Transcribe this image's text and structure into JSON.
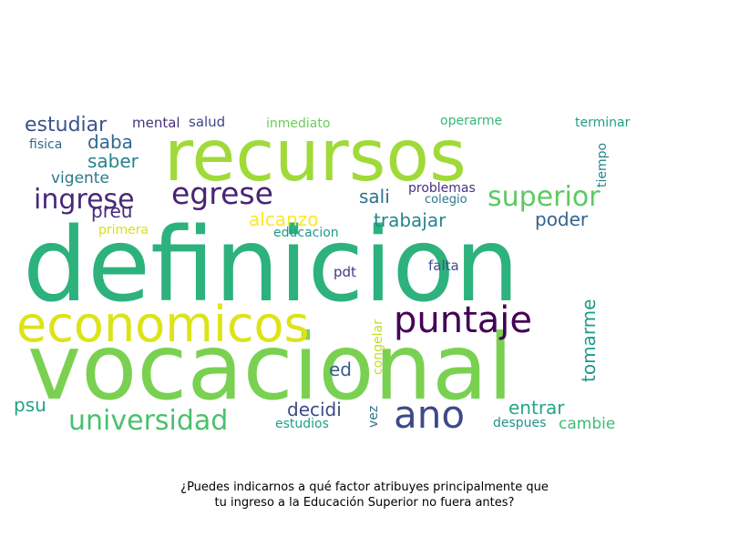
{
  "caption": {
    "line1": "¿Puedes indicarnos a qué factor atribuyes principalmente que",
    "line2": "tu ingreso a la Educación Superior no fuera antes?"
  },
  "word_cloud": {
    "words": [
      {
        "text": "definicion",
        "color": "#2db27d"
      },
      {
        "text": "vocacional",
        "color": "#7ad151"
      },
      {
        "text": "recursos",
        "color": "#a0da39"
      },
      {
        "text": "economicos",
        "color": "#dde318"
      },
      {
        "text": "puntaje",
        "color": "#440154"
      },
      {
        "text": "egrese",
        "color": "#482374"
      },
      {
        "text": "ingrese",
        "color": "#482878"
      },
      {
        "text": "superior",
        "color": "#5ec962"
      },
      {
        "text": "ano",
        "color": "#3e4989"
      },
      {
        "text": "universidad",
        "color": "#4ac16d"
      },
      {
        "text": "estudiar",
        "color": "#3b528b"
      },
      {
        "text": "daba",
        "color": "#31688e"
      },
      {
        "text": "saber",
        "color": "#26828e"
      },
      {
        "text": "vigente",
        "color": "#2a788e"
      },
      {
        "text": "preu",
        "color": "#472d7b"
      },
      {
        "text": "mental",
        "color": "#46327e"
      },
      {
        "text": "salud",
        "color": "#414487"
      },
      {
        "text": "fisica",
        "color": "#31688e"
      },
      {
        "text": "inmediato",
        "color": "#6ccd5a"
      },
      {
        "text": "operarme",
        "color": "#35b779"
      },
      {
        "text": "terminar",
        "color": "#1f9e89"
      },
      {
        "text": "tiempo",
        "color": "#26828e"
      },
      {
        "text": "sali",
        "color": "#2c728e"
      },
      {
        "text": "problemas",
        "color": "#46337f"
      },
      {
        "text": "colegio",
        "color": "#2a788e"
      },
      {
        "text": "alcanzo",
        "color": "#fde725"
      },
      {
        "text": "trabajar",
        "color": "#25858e"
      },
      {
        "text": "poder",
        "color": "#33638d"
      },
      {
        "text": "primera",
        "color": "#d8e219"
      },
      {
        "text": "educacion",
        "color": "#1f9a8a"
      },
      {
        "text": "pdt",
        "color": "#443983"
      },
      {
        "text": "falta",
        "color": "#3e4c8a"
      },
      {
        "text": "tomarme",
        "color": "#1e9b8a"
      },
      {
        "text": "congelar",
        "color": "#c2df23"
      },
      {
        "text": "ed",
        "color": "#375b8d"
      },
      {
        "text": "psu",
        "color": "#20a386"
      },
      {
        "text": "decidi",
        "color": "#3e4989"
      },
      {
        "text": "vez",
        "color": "#2c728e"
      },
      {
        "text": "estudios",
        "color": "#1fa187"
      },
      {
        "text": "entrar",
        "color": "#22a785"
      },
      {
        "text": "despues",
        "color": "#21918c"
      },
      {
        "text": "cambie",
        "color": "#3dbc74"
      }
    ]
  }
}
